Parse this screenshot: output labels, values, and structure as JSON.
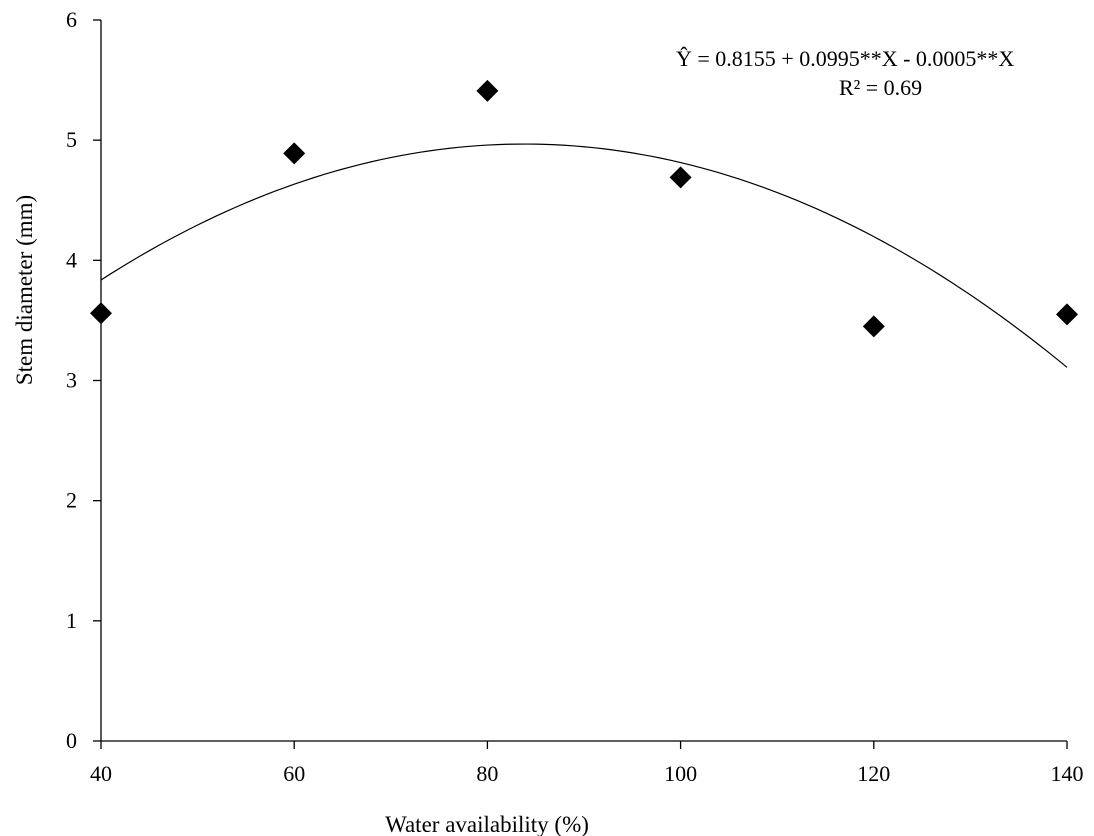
{
  "chart_data": {
    "type": "scatter",
    "xlabel": "Water availability (%)",
    "ylabel": "Stem diameter (mm)",
    "xlim": [
      40,
      140
    ],
    "ylim": [
      0,
      6
    ],
    "x_ticks": [
      40,
      60,
      80,
      100,
      120,
      140
    ],
    "y_ticks": [
      0,
      1,
      2,
      3,
      4,
      5,
      6
    ],
    "grid": false,
    "series": [
      {
        "marker": "diamond",
        "color": "#000000",
        "points": [
          {
            "x": 40,
            "y": 3.56
          },
          {
            "x": 60,
            "y": 4.89
          },
          {
            "x": 80,
            "y": 5.41
          },
          {
            "x": 100,
            "y": 4.69
          },
          {
            "x": 120,
            "y": 3.45
          },
          {
            "x": 140,
            "y": 3.55
          }
        ]
      }
    ],
    "fit": {
      "type": "quadratic",
      "coefficients": {
        "a": 0.8155,
        "b": 0.0995,
        "c": -0.0005
      },
      "x_range": [
        40,
        140
      ]
    },
    "annotations": {
      "equation": "Ŷ = 0.8155 + 0.0995**X - 0.0005**X",
      "r2": "R² = 0.69"
    }
  }
}
